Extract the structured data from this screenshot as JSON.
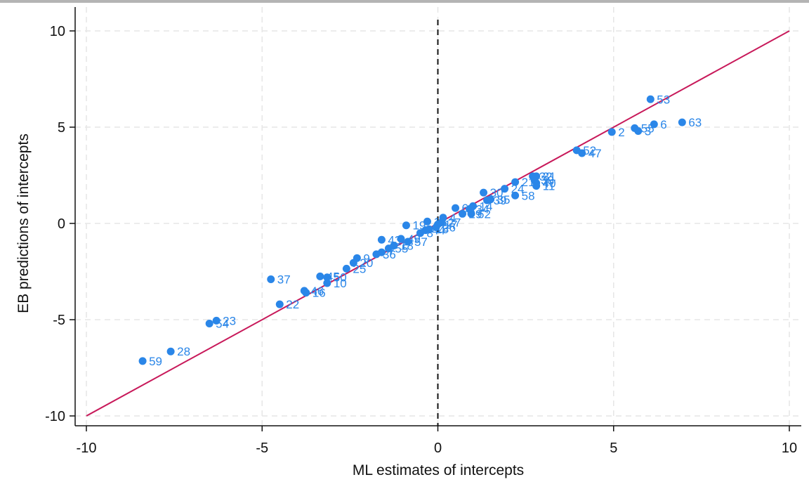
{
  "chart_data": {
    "type": "scatter",
    "title": "",
    "xlabel": "ML estimates of intercepts",
    "ylabel": "EB predictions of intercepts",
    "xlim": [
      -10,
      10
    ],
    "ylim": [
      -10,
      10
    ],
    "xticks": [
      -10,
      -5,
      0,
      5,
      10
    ],
    "yticks": [
      -10,
      -5,
      0,
      5,
      10
    ],
    "grid": true,
    "colors": {
      "points": "#2a86e8",
      "labels": "#2a86e8",
      "fit_line": "#c8195a",
      "zero_line": "#111111",
      "grid": "#e6e6e6"
    },
    "reference_line": {
      "from": [
        -10,
        -10
      ],
      "to": [
        10,
        10
      ]
    },
    "vertical_line_x": 0,
    "points": [
      {
        "label": "59",
        "x": -8.4,
        "y": -7.15
      },
      {
        "label": "28",
        "x": -7.6,
        "y": -6.65
      },
      {
        "label": "54",
        "x": -6.5,
        "y": -5.2
      },
      {
        "label": "23",
        "x": -6.3,
        "y": -5.05
      },
      {
        "label": "22",
        "x": -4.5,
        "y": -4.2
      },
      {
        "label": "37",
        "x": -4.75,
        "y": -2.9
      },
      {
        "label": "46",
        "x": -3.8,
        "y": -3.5
      },
      {
        "label": "16",
        "x": -3.75,
        "y": -3.6
      },
      {
        "label": "45",
        "x": -3.35,
        "y": -2.75
      },
      {
        "label": "50",
        "x": -3.15,
        "y": -2.8
      },
      {
        "label": "10",
        "x": -3.15,
        "y": -3.1
      },
      {
        "label": "25",
        "x": -2.6,
        "y": -2.35
      },
      {
        "label": "9",
        "x": -2.3,
        "y": -1.8
      },
      {
        "label": "20",
        "x": -2.4,
        "y": -2.05
      },
      {
        "label": "36",
        "x": -1.75,
        "y": -1.6
      },
      {
        "label": "7",
        "x": -1.6,
        "y": -1.5
      },
      {
        "label": "43",
        "x": -1.6,
        "y": -0.85
      },
      {
        "label": "55",
        "x": -1.4,
        "y": -1.3
      },
      {
        "label": "18",
        "x": -1.25,
        "y": -1.15
      },
      {
        "label": "49",
        "x": -1.05,
        "y": -0.8
      },
      {
        "label": "57",
        "x": -0.85,
        "y": -0.95
      },
      {
        "label": "19",
        "x": -0.9,
        "y": -0.1
      },
      {
        "label": "8",
        "x": -0.5,
        "y": -0.5
      },
      {
        "label": "44",
        "x": -0.35,
        "y": -0.35
      },
      {
        "label": "15",
        "x": -0.25,
        "y": -0.3
      },
      {
        "label": "26",
        "x": -0.05,
        "y": -0.2
      },
      {
        "label": "17",
        "x": 0.0,
        "y": -0.05
      },
      {
        "label": "27",
        "x": 0.1,
        "y": 0.05
      },
      {
        "label": "13",
        "x": -0.3,
        "y": 0.1
      },
      {
        "label": "4",
        "x": 0.15,
        "y": 0.3
      },
      {
        "label": "60",
        "x": 0.5,
        "y": 0.8
      },
      {
        "label": "29",
        "x": 0.7,
        "y": 0.5
      },
      {
        "label": "62",
        "x": 0.95,
        "y": 0.5
      },
      {
        "label": "34",
        "x": 0.9,
        "y": 0.75
      },
      {
        "label": "14",
        "x": 1.0,
        "y": 0.9
      },
      {
        "label": "30",
        "x": 1.3,
        "y": 1.6
      },
      {
        "label": "39",
        "x": 1.4,
        "y": 1.2
      },
      {
        "label": "35",
        "x": 1.5,
        "y": 1.25
      },
      {
        "label": "24",
        "x": 1.9,
        "y": 1.8
      },
      {
        "label": "21",
        "x": 2.2,
        "y": 2.15
      },
      {
        "label": "58",
        "x": 2.2,
        "y": 1.45
      },
      {
        "label": "32",
        "x": 2.7,
        "y": 2.45
      },
      {
        "label": "31",
        "x": 2.8,
        "y": 2.45
      },
      {
        "label": "38",
        "x": 2.75,
        "y": 2.25
      },
      {
        "label": "40",
        "x": 2.8,
        "y": 2.1
      },
      {
        "label": "11",
        "x": 2.8,
        "y": 1.95
      },
      {
        "label": "52",
        "x": 3.95,
        "y": 3.8
      },
      {
        "label": "47",
        "x": 4.1,
        "y": 3.65
      },
      {
        "label": "2",
        "x": 4.95,
        "y": 4.75
      },
      {
        "label": "55",
        "x": 5.6,
        "y": 4.95
      },
      {
        "label": "3",
        "x": 5.7,
        "y": 4.8
      },
      {
        "label": "6",
        "x": 6.15,
        "y": 5.15
      },
      {
        "label": "53",
        "x": 6.05,
        "y": 6.45
      },
      {
        "label": "63",
        "x": 6.95,
        "y": 5.25
      }
    ]
  }
}
